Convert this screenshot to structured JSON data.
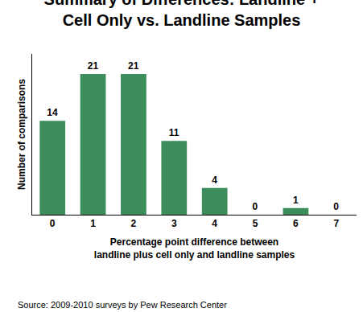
{
  "chart_data": {
    "type": "bar",
    "title": "Summary of Differences: Landline +\nCell Only vs. Landline Samples",
    "x_label": "Percentage point difference between\nlandline plus cell only and landline samples",
    "y_label": "Number of comparisons",
    "categories": [
      "0",
      "1",
      "2",
      "3",
      "4",
      "5",
      "6",
      "7"
    ],
    "values": [
      14,
      21,
      21,
      11,
      4,
      0,
      1,
      0
    ],
    "color": "#3d8c5c",
    "ylim": [
      0,
      24
    ],
    "tick_labels": "x",
    "data_labels": true,
    "grid": false,
    "annotations": [
      "Source: 2009-2010 surveys by Pew Research Center"
    ]
  }
}
